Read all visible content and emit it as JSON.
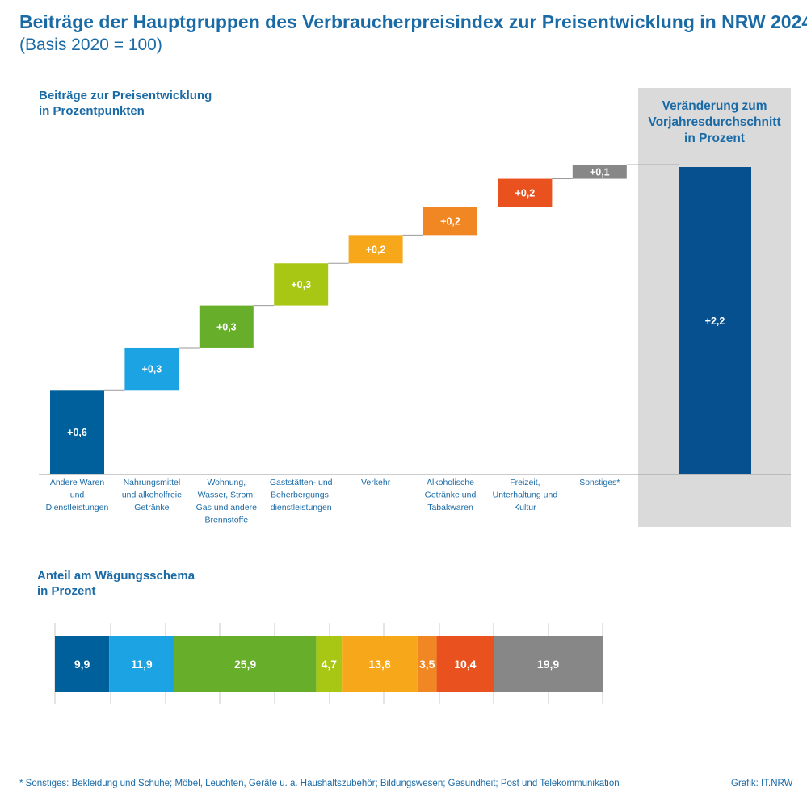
{
  "title": "Beiträge der Hauptgruppen des Verbraucherpreisindex zur Preisentwicklung in NRW 2024",
  "subtitle": "(Basis 2020 = 100)",
  "chart_data": [
    {
      "type": "bar",
      "title": "Beiträge zur Preisentwicklung in Prozentpunkten",
      "categories": [
        [
          "Andere Waren",
          "und",
          "Dienstleistungen"
        ],
        [
          "Nahrungsmittel",
          "und alkoholfreie",
          "Getränke"
        ],
        [
          "Wohnung,",
          "Wasser, Strom,",
          "Gas und andere",
          "Brennstoffe"
        ],
        [
          "Gaststätten- und",
          "Beherbergungs-",
          "dienstleistungen"
        ],
        [
          "Verkehr"
        ],
        [
          "Alkoholische",
          "Getränke und",
          "Tabakwaren"
        ],
        [
          "Freizeit,",
          "Unterhaltung und",
          "Kultur"
        ],
        [
          "Sonstiges*"
        ]
      ],
      "values": [
        0.6,
        0.3,
        0.3,
        0.3,
        0.2,
        0.2,
        0.2,
        0.1
      ],
      "value_labels": [
        "+0,6",
        "+0,3",
        "+0,3",
        "+0,3",
        "+0,2",
        "+0,2",
        "+0,2",
        "+0,1"
      ],
      "colors": [
        "#00609c",
        "#1ba3e3",
        "#67ae2b",
        "#a8c715",
        "#f6a81a",
        "#f18723",
        "#e9521e",
        "#878787"
      ],
      "total": {
        "title": "Veränderung zum Vorjahresdurchschnitt in Prozent",
        "value": 2.2,
        "value_label": "+2,2",
        "color": "#06508f"
      }
    },
    {
      "type": "bar",
      "title": "Anteil am Wägungsschema in Prozent",
      "values": [
        9.9,
        11.9,
        25.9,
        4.7,
        13.8,
        3.5,
        10.4,
        19.9
      ],
      "value_labels": [
        "9,9",
        "11,9",
        "25,9",
        "4,7",
        "13,8",
        "3,5",
        "10,4",
        "19,9"
      ],
      "colors": [
        "#00609c",
        "#1ba3e3",
        "#67ae2b",
        "#a8c715",
        "#f6a81a",
        "#f18723",
        "#e9521e",
        "#878787"
      ]
    }
  ],
  "labels": {
    "waterfall_title_line1": "Beiträge zur Preisentwicklung",
    "waterfall_title_line2": "in Prozentpunkten",
    "panel_title_line1": "Veränderung zum",
    "panel_title_line2": "Vorjahresdurchschnitt",
    "panel_title_line3": "in Prozent",
    "weights_title_line1": "Anteil am Wägungsschema",
    "weights_title_line2": "in Prozent"
  },
  "footnote": "* Sonstiges: Bekleidung und Schuhe; Möbel, Leuchten, Geräte u. a. Haushaltszubehör; Bildungswesen; Gesundheit; Post und Telekommunikation",
  "source": "Grafik: IT.NRW"
}
